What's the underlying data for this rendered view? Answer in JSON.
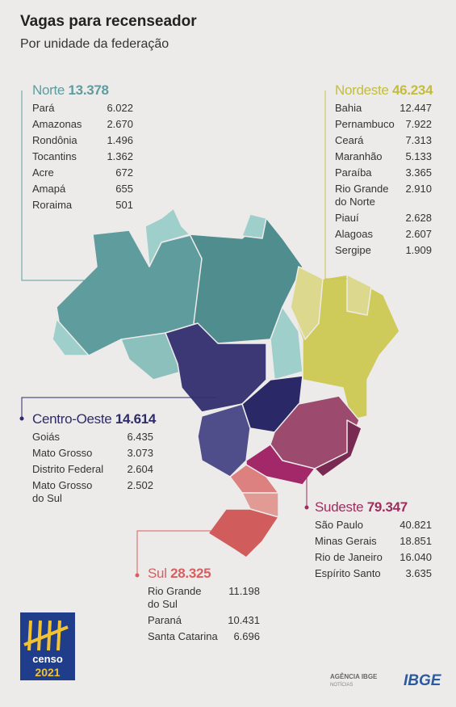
{
  "header": {
    "title": "Vagas para recenseador",
    "subtitle": "Por unidade da federação"
  },
  "regions": [
    {
      "name": "Norte",
      "total": "13.378",
      "states": [
        {
          "name": "Pará",
          "value": "6.022"
        },
        {
          "name": "Amazonas",
          "value": "2.670"
        },
        {
          "name": "Rondônia",
          "value": "1.496"
        },
        {
          "name": "Tocantins",
          "value": "1.362"
        },
        {
          "name": "Acre",
          "value": "672"
        },
        {
          "name": "Amapá",
          "value": "655"
        },
        {
          "name": "Roraima",
          "value": "501"
        }
      ]
    },
    {
      "name": "Nordeste",
      "total": "46.234",
      "states": [
        {
          "name": "Bahia",
          "value": "12.447"
        },
        {
          "name": "Pernambuco",
          "value": "7.922"
        },
        {
          "name": "Ceará",
          "value": "7.313"
        },
        {
          "name": "Maranhão",
          "value": "5.133"
        },
        {
          "name": "Paraíba",
          "value": "3.365"
        },
        {
          "name": "Rio Grande\ndo Norte",
          "value": "2.910"
        },
        {
          "name": "Piauí",
          "value": "2.628"
        },
        {
          "name": "Alagoas",
          "value": "2.607"
        },
        {
          "name": "Sergipe",
          "value": "1.909"
        }
      ]
    },
    {
      "name": "Centro-Oeste",
      "total": "14.614",
      "states": [
        {
          "name": "Goiás",
          "value": "6.435"
        },
        {
          "name": "Mato Grosso",
          "value": "3.073"
        },
        {
          "name": "Distrito Federal",
          "value": "2.604"
        },
        {
          "name": "Mato Grosso\ndo Sul",
          "value": "2.502"
        }
      ]
    },
    {
      "name": "Sudeste",
      "total": "79.347",
      "states": [
        {
          "name": "São Paulo",
          "value": "40.821"
        },
        {
          "name": "Minas Gerais",
          "value": "18.851"
        },
        {
          "name": "Rio de Janeiro",
          "value": "16.040"
        },
        {
          "name": "Espírito Santo",
          "value": "3.635"
        }
      ]
    },
    {
      "name": "Sul",
      "total": "28.325",
      "states": [
        {
          "name": "Rio Grande\ndo Sul",
          "value": "11.198"
        },
        {
          "name": "Paraná",
          "value": "10.431"
        },
        {
          "name": "Santa Catarina",
          "value": "6.696"
        }
      ]
    }
  ],
  "footer": {
    "logo_top": "censo",
    "logo_year": "2021",
    "agency": "AGÊNCIA IBGE",
    "agency_sub": "NOTÍCIAS",
    "ibge": "IBGE"
  }
}
